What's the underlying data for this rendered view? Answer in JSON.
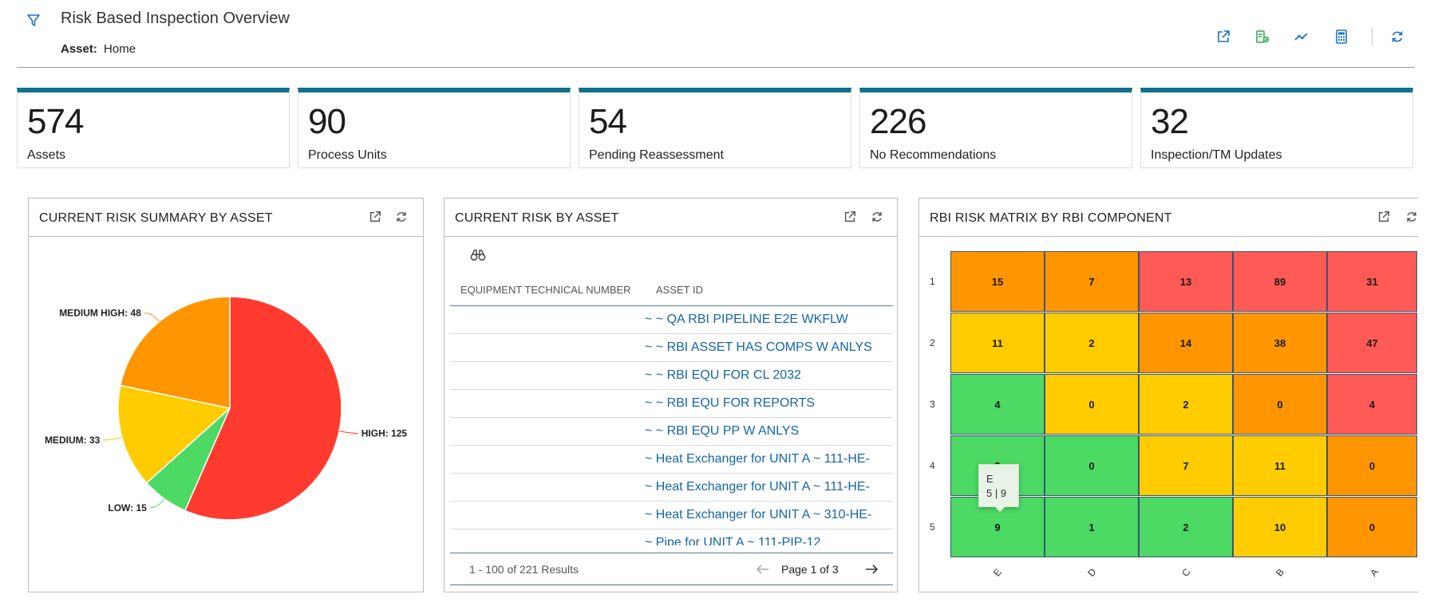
{
  "header": {
    "title": "Risk Based Inspection Overview",
    "asset_label": "Asset:",
    "asset_value": "Home",
    "icons": [
      "filter-icon",
      "open-in-new-icon",
      "asset-hierarchy-icon",
      "trend-icon",
      "calculator-icon",
      "refresh-icon"
    ],
    "accent": "#1a73c5"
  },
  "kpis": [
    {
      "value": "574",
      "label": "Assets"
    },
    {
      "value": "90",
      "label": "Process Units"
    },
    {
      "value": "54",
      "label": "Pending Reassessment"
    },
    {
      "value": "226",
      "label": "No Recommendations"
    },
    {
      "value": "32",
      "label": "Inspection/TM Updates"
    }
  ],
  "kpi_accent": "#12708a",
  "pie_widget": {
    "title": "CURRENT RISK SUMMARY BY ASSET",
    "icons": [
      "open-in-new-icon",
      "refresh-icon"
    ]
  },
  "chart_data": {
    "type": "pie",
    "title": "CURRENT RISK SUMMARY BY ASSET",
    "slices": [
      {
        "name": "HIGH",
        "value": 125,
        "label": "HIGH: 125",
        "color": "#ff3b30"
      },
      {
        "name": "LOW",
        "value": 15,
        "label": "LOW: 15",
        "color": "#4cd964"
      },
      {
        "name": "MEDIUM",
        "value": 33,
        "label": "MEDIUM: 33",
        "color": "#ffcc00"
      },
      {
        "name": "MEDIUM HIGH",
        "value": 48,
        "label": "MEDIUM HIGH: 48",
        "color": "#ff9500"
      }
    ]
  },
  "table_widget": {
    "title": "CURRENT RISK BY ASSET",
    "columns": [
      "EQUIPMENT TECHNICAL NUMBER",
      "ASSET ID"
    ],
    "rows": [
      {
        "equipment_technical_number": "",
        "asset_id": "~ ~ QA RBI PIPELINE E2E WKFLW"
      },
      {
        "equipment_technical_number": "",
        "asset_id": "~ ~ RBI ASSET HAS COMPS W ANLYS"
      },
      {
        "equipment_technical_number": "",
        "asset_id": "~ ~ RBI EQU FOR CL 2032"
      },
      {
        "equipment_technical_number": "",
        "asset_id": "~ ~ RBI EQU FOR REPORTS"
      },
      {
        "equipment_technical_number": "",
        "asset_id": "~ ~ RBI EQU PP W ANLYS"
      },
      {
        "equipment_technical_number": "",
        "asset_id": "~ Heat Exchanger for UNIT A ~ 111-HE-"
      },
      {
        "equipment_technical_number": "",
        "asset_id": "~ Heat Exchanger for UNIT A ~ 111-HE-"
      },
      {
        "equipment_technical_number": "",
        "asset_id": "~ Heat Exchanger for UNIT A ~ 310-HE-"
      },
      {
        "equipment_technical_number": "",
        "asset_id": "~ Pipe for UNIT A ~ 111-PIP-12"
      }
    ],
    "results_text": "1 - 100 of 221 Results",
    "page_text": "Page 1 of 3",
    "link_color": "#1565a8"
  },
  "matrix_widget": {
    "title": "RBI RISK MATRIX BY RBI COMPONENT",
    "row_labels": [
      "1",
      "2",
      "3",
      "4",
      "5"
    ],
    "col_labels": [
      "E",
      "D",
      "C",
      "B",
      "A"
    ],
    "cells": [
      [
        "15",
        "7",
        "13",
        "89",
        "31"
      ],
      [
        "11",
        "2",
        "14",
        "38",
        "47"
      ],
      [
        "4",
        "0",
        "2",
        "0",
        "4"
      ],
      [
        "3",
        "0",
        "7",
        "11",
        "0"
      ],
      [
        "9",
        "1",
        "2",
        "10",
        "0"
      ]
    ],
    "cell_colors": [
      [
        "#ff9500",
        "#ff9500",
        "#ff5a55",
        "#ff5a55",
        "#ff5a55"
      ],
      [
        "#ffcc00",
        "#ffcc00",
        "#ff9500",
        "#ff9500",
        "#ff5a55"
      ],
      [
        "#4cd964",
        "#ffcc00",
        "#ffcc00",
        "#ff9500",
        "#ff5a55"
      ],
      [
        "#4cd964",
        "#4cd964",
        "#ffcc00",
        "#ffcc00",
        "#ff9500"
      ],
      [
        "#4cd964",
        "#4cd964",
        "#4cd964",
        "#ffcc00",
        "#ff9500"
      ]
    ],
    "tooltip": {
      "line1": "E",
      "line2": "5 | 9"
    }
  }
}
